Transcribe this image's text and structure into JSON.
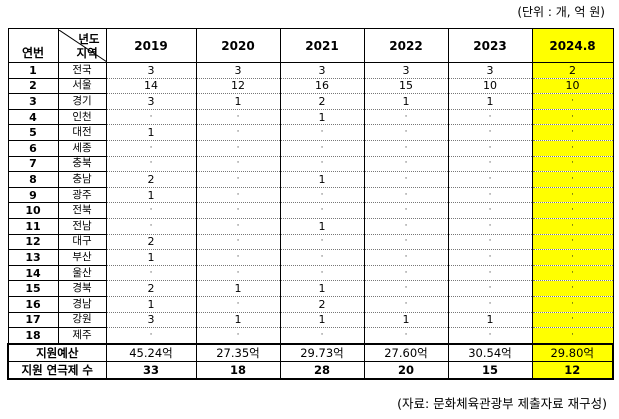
{
  "unit_note": "(단위 : 개, 억 원)",
  "source_note": "(자료: 문화체육관광부 제출자료 재구성)",
  "header": {
    "serial": "연번",
    "year_label": "년도",
    "region_label": "지역",
    "years": [
      "2019",
      "2020",
      "2021",
      "2022",
      "2023",
      "2024.8"
    ]
  },
  "rows": [
    {
      "no": "1",
      "region": "전국",
      "values": [
        "3",
        "3",
        "3",
        "3",
        "3",
        "2"
      ]
    },
    {
      "no": "2",
      "region": "서울",
      "values": [
        "14",
        "12",
        "16",
        "15",
        "10",
        "10"
      ]
    },
    {
      "no": "3",
      "region": "경기",
      "values": [
        "3",
        "1",
        "2",
        "1",
        "1",
        "·"
      ]
    },
    {
      "no": "4",
      "region": "인천",
      "values": [
        "·",
        "·",
        "1",
        "·",
        "·",
        "·"
      ]
    },
    {
      "no": "5",
      "region": "대전",
      "values": [
        "1",
        "·",
        "·",
        "·",
        "·",
        "·"
      ]
    },
    {
      "no": "6",
      "region": "세종",
      "values": [
        "·",
        "·",
        "·",
        "·",
        "·",
        "·"
      ]
    },
    {
      "no": "7",
      "region": "충북",
      "values": [
        "·",
        "·",
        "·",
        "·",
        "·",
        "·"
      ]
    },
    {
      "no": "8",
      "region": "충남",
      "values": [
        "2",
        "·",
        "1",
        "·",
        "·",
        "·"
      ]
    },
    {
      "no": "9",
      "region": "광주",
      "values": [
        "1",
        "·",
        "·",
        "·",
        "·",
        "·"
      ]
    },
    {
      "no": "10",
      "region": "전북",
      "values": [
        "·",
        "·",
        "·",
        "·",
        "·",
        "·"
      ]
    },
    {
      "no": "11",
      "region": "전남",
      "values": [
        "·",
        "·",
        "1",
        "·",
        "·",
        "·"
      ]
    },
    {
      "no": "12",
      "region": "대구",
      "values": [
        "2",
        "·",
        "·",
        "·",
        "·",
        "·"
      ]
    },
    {
      "no": "13",
      "region": "부산",
      "values": [
        "1",
        "·",
        "·",
        "·",
        "·",
        "·"
      ]
    },
    {
      "no": "14",
      "region": "울산",
      "values": [
        "·",
        "·",
        "·",
        "·",
        "·",
        "·"
      ]
    },
    {
      "no": "15",
      "region": "경북",
      "values": [
        "2",
        "1",
        "1",
        "·",
        "·",
        "·"
      ]
    },
    {
      "no": "16",
      "region": "경남",
      "values": [
        "1",
        "·",
        "2",
        "·",
        "·",
        "·"
      ]
    },
    {
      "no": "17",
      "region": "강원",
      "values": [
        "3",
        "1",
        "1",
        "1",
        "1",
        "·"
      ]
    },
    {
      "no": "18",
      "region": "제주",
      "values": [
        "·",
        "·",
        "·",
        "·",
        "·",
        "·"
      ]
    }
  ],
  "footer": {
    "budget_label": "지원예산",
    "budget_values": [
      "45.24억",
      "27.35억",
      "29.73억",
      "27.60억",
      "30.54억",
      "29.80억"
    ],
    "count_label": "지원 연극제 수",
    "count_values": [
      "33",
      "18",
      "28",
      "20",
      "15",
      "12"
    ]
  },
  "colors": {
    "highlight": "#ffff00"
  }
}
